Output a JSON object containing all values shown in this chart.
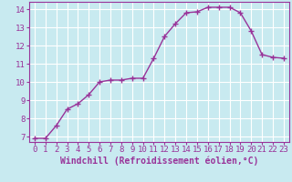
{
  "x": [
    0,
    1,
    2,
    3,
    4,
    5,
    6,
    7,
    8,
    9,
    10,
    11,
    12,
    13,
    14,
    15,
    16,
    17,
    18,
    19,
    20,
    21,
    22,
    23
  ],
  "y": [
    6.9,
    6.9,
    7.6,
    8.5,
    8.8,
    9.3,
    10.0,
    10.1,
    10.1,
    10.2,
    10.2,
    11.3,
    12.5,
    13.2,
    13.8,
    13.85,
    14.1,
    14.1,
    14.1,
    13.8,
    12.8,
    11.5,
    11.35,
    11.3
  ],
  "line_color": "#993399",
  "marker": "+",
  "marker_size": 4,
  "marker_linewidth": 1.0,
  "linewidth": 1.0,
  "xlabel": "Windchill (Refroidissement éolien,°C)",
  "xlim_min": -0.5,
  "xlim_max": 23.5,
  "ylim_min": 6.7,
  "ylim_max": 14.4,
  "yticks": [
    7,
    8,
    9,
    10,
    11,
    12,
    13,
    14
  ],
  "xticks": [
    0,
    1,
    2,
    3,
    4,
    5,
    6,
    7,
    8,
    9,
    10,
    11,
    12,
    13,
    14,
    15,
    16,
    17,
    18,
    19,
    20,
    21,
    22,
    23
  ],
  "bg_color": "#c8eaf0",
  "grid_color": "#ffffff",
  "line_border_color": "#993399",
  "tick_color": "#993399",
  "label_color": "#993399",
  "xlabel_fontsize": 7,
  "tick_fontsize": 6.5
}
